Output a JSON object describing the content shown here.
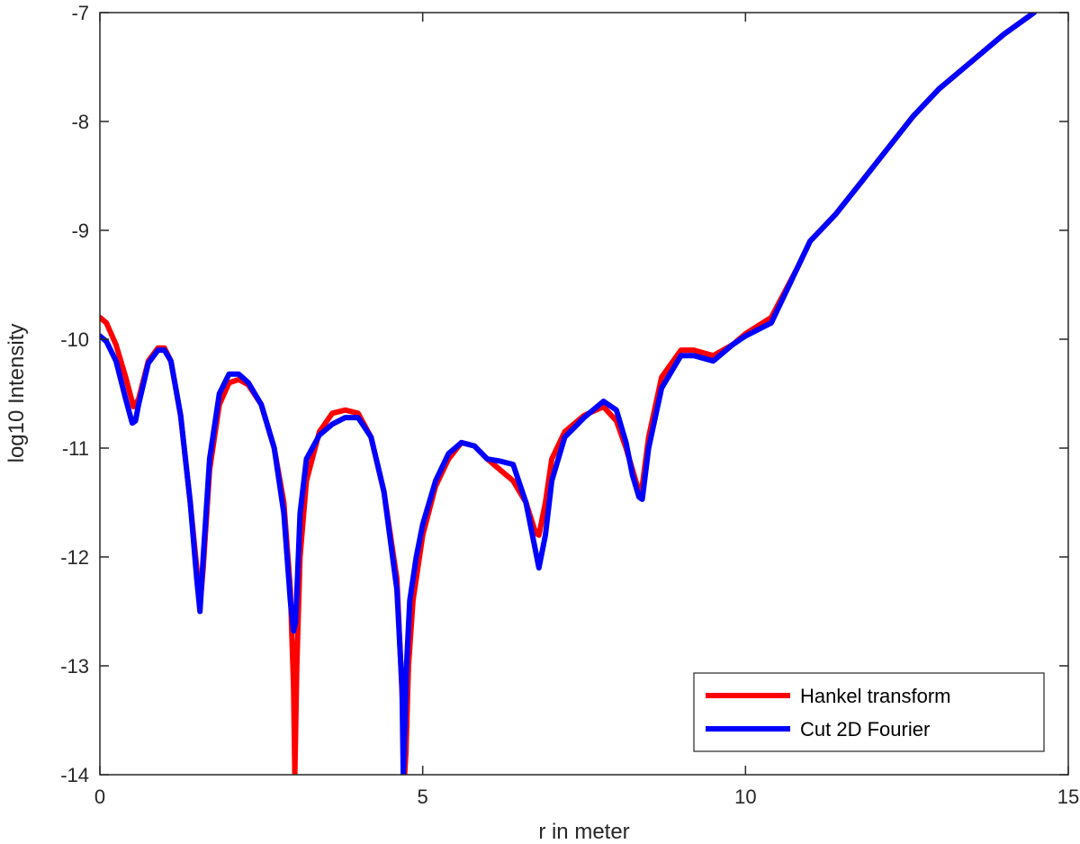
{
  "chart_data": {
    "type": "line",
    "title": "",
    "xlabel": "r in meter",
    "ylabel": "log10 Intensity",
    "xlim": [
      0,
      15
    ],
    "ylim": [
      -14,
      -7
    ],
    "xticks": [
      0,
      5,
      10,
      15
    ],
    "yticks": [
      -14,
      -13,
      -12,
      -11,
      -10,
      -9,
      -8,
      -7
    ],
    "xtick_labels": [
      "0",
      "5",
      "10",
      "15"
    ],
    "ytick_labels": [
      "-14",
      "-13",
      "-12",
      "-11",
      "-10",
      "-9",
      "-8",
      "-7"
    ],
    "grid": false,
    "legend": {
      "position": "bottom-right"
    },
    "series": [
      {
        "name": "Hankel transform",
        "color": "#ff0000",
        "x": [
          0,
          0.1,
          0.25,
          0.4,
          0.52,
          0.6,
          0.75,
          0.9,
          1.0,
          1.1,
          1.25,
          1.4,
          1.5,
          1.55,
          1.6,
          1.7,
          1.85,
          2.0,
          2.15,
          2.3,
          2.5,
          2.7,
          2.85,
          2.95,
          3.0,
          3.02,
          3.05,
          3.1,
          3.2,
          3.4,
          3.6,
          3.8,
          4.0,
          4.2,
          4.4,
          4.6,
          4.7,
          4.72,
          4.74,
          4.78,
          4.85,
          5.0,
          5.2,
          5.4,
          5.6,
          5.8,
          6.0,
          6.2,
          6.4,
          6.6,
          6.75,
          6.8,
          6.9,
          7.0,
          7.2,
          7.5,
          7.8,
          8.0,
          8.15,
          8.25,
          8.35,
          8.4,
          8.5,
          8.7,
          9.0,
          9.2,
          9.5,
          9.8,
          10.0,
          10.4,
          10.8,
          11.0,
          11.4,
          11.8,
          12.2,
          12.6,
          13.0,
          13.5,
          14.0,
          14.47
        ],
        "y": [
          -9.8,
          -9.85,
          -10.05,
          -10.35,
          -10.62,
          -10.55,
          -10.2,
          -10.08,
          -10.08,
          -10.2,
          -10.7,
          -11.5,
          -12.1,
          -12.45,
          -12.1,
          -11.2,
          -10.6,
          -10.4,
          -10.37,
          -10.42,
          -10.6,
          -11.0,
          -11.5,
          -12.3,
          -13.2,
          -14.0,
          -13.0,
          -12.0,
          -11.3,
          -10.85,
          -10.68,
          -10.65,
          -10.68,
          -10.9,
          -11.4,
          -12.2,
          -13.5,
          -14.0,
          -13.8,
          -13.0,
          -12.4,
          -11.8,
          -11.35,
          -11.1,
          -10.95,
          -10.98,
          -11.1,
          -11.2,
          -11.3,
          -11.5,
          -11.78,
          -11.8,
          -11.5,
          -11.1,
          -10.85,
          -10.7,
          -10.62,
          -10.75,
          -11.0,
          -11.2,
          -11.4,
          -11.35,
          -10.9,
          -10.35,
          -10.1,
          -10.1,
          -10.15,
          -10.05,
          -9.95,
          -9.8,
          -9.35,
          -9.1,
          -8.85,
          -8.55,
          -8.25,
          -7.95,
          -7.7,
          -7.45,
          -7.2,
          -7.0
        ]
      },
      {
        "name": "Cut 2D Fourier",
        "color": "#0000ff",
        "x": [
          0,
          0.1,
          0.25,
          0.4,
          0.5,
          0.55,
          0.6,
          0.75,
          0.9,
          1.0,
          1.1,
          1.25,
          1.4,
          1.5,
          1.55,
          1.6,
          1.7,
          1.85,
          2.0,
          2.15,
          2.3,
          2.5,
          2.7,
          2.85,
          2.95,
          3.0,
          3.03,
          3.06,
          3.1,
          3.2,
          3.4,
          3.6,
          3.8,
          4.0,
          4.2,
          4.4,
          4.6,
          4.68,
          4.7,
          4.72,
          4.75,
          4.8,
          4.9,
          5.0,
          5.2,
          5.4,
          5.6,
          5.8,
          6.0,
          6.2,
          6.4,
          6.6,
          6.75,
          6.8,
          6.9,
          7.0,
          7.2,
          7.5,
          7.8,
          8.0,
          8.15,
          8.25,
          8.35,
          8.4,
          8.5,
          8.7,
          9.0,
          9.2,
          9.5,
          9.8,
          10.0,
          10.4,
          10.8,
          11.0,
          11.4,
          11.8,
          12.2,
          12.6,
          13.0,
          13.5,
          14.0,
          14.47
        ],
        "y": [
          -9.97,
          -10.02,
          -10.2,
          -10.55,
          -10.77,
          -10.75,
          -10.6,
          -10.22,
          -10.1,
          -10.1,
          -10.2,
          -10.7,
          -11.5,
          -12.2,
          -12.5,
          -12.0,
          -11.1,
          -10.5,
          -10.32,
          -10.32,
          -10.4,
          -10.6,
          -11.0,
          -11.6,
          -12.4,
          -12.68,
          -12.6,
          -12.2,
          -11.6,
          -11.1,
          -10.88,
          -10.78,
          -10.72,
          -10.72,
          -10.9,
          -11.4,
          -12.3,
          -13.2,
          -14.0,
          -13.6,
          -13.0,
          -12.4,
          -12.0,
          -11.7,
          -11.3,
          -11.05,
          -10.95,
          -10.98,
          -11.1,
          -11.12,
          -11.15,
          -11.5,
          -11.95,
          -12.1,
          -11.8,
          -11.3,
          -10.9,
          -10.72,
          -10.57,
          -10.65,
          -10.95,
          -11.25,
          -11.45,
          -11.47,
          -11.0,
          -10.45,
          -10.15,
          -10.15,
          -10.2,
          -10.05,
          -9.97,
          -9.85,
          -9.35,
          -9.1,
          -8.85,
          -8.55,
          -8.25,
          -7.95,
          -7.7,
          -7.45,
          -7.2,
          -7.0
        ]
      }
    ]
  }
}
